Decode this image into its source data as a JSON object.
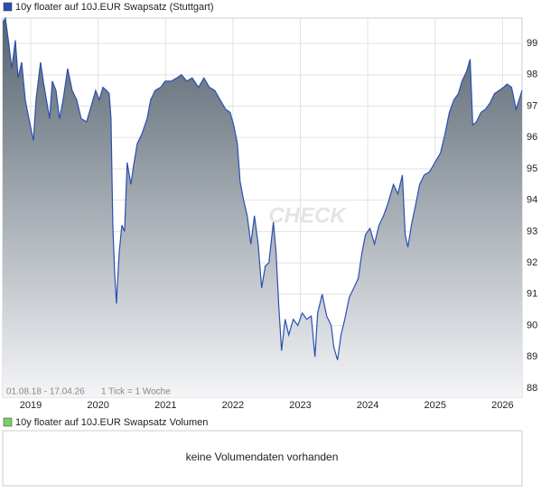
{
  "chart_data": {
    "type": "area",
    "title": "10y floater auf 10J.EUR Swapsatz (Stuttgart)",
    "range_label": "01.08.18 - 17.04.26",
    "tick_label": "1 Tick = 1 Woche",
    "watermark": "CHECK",
    "volume_title": "10y floater auf 10J.EUR Swapsatz Volumen",
    "volume_note": "keine Volumendaten vorhanden",
    "color": "#2a4fb0",
    "fill_top": "#56636f",
    "fill_bottom": "#f4f5f7",
    "title_marker_color": "#2a4fb0",
    "volume_marker_color": "#7ccf6a",
    "grid": true,
    "x": [
      2018.585,
      2018.625,
      2018.679,
      2018.719,
      2018.772,
      2018.813,
      2018.866,
      2018.92,
      2018.973,
      2019.04,
      2019.08,
      2019.147,
      2019.187,
      2019.241,
      2019.281,
      2019.321,
      2019.375,
      2019.428,
      2019.482,
      2019.549,
      2019.616,
      2019.683,
      2019.75,
      2019.83,
      2019.884,
      2019.964,
      2020.017,
      2020.071,
      2020.124,
      2020.165,
      2020.191,
      2020.218,
      2020.245,
      2020.272,
      2020.312,
      2020.352,
      2020.392,
      2020.432,
      2020.486,
      2020.526,
      2020.58,
      2020.647,
      2020.727,
      2020.78,
      2020.847,
      2020.928,
      2020.995,
      2021.088,
      2021.169,
      2021.236,
      2021.316,
      2021.396,
      2021.49,
      2021.57,
      2021.651,
      2021.731,
      2021.811,
      2021.892,
      2021.959,
      2022.012,
      2022.066,
      2022.106,
      2022.159,
      2022.213,
      2022.266,
      2022.32,
      2022.374,
      2022.427,
      2022.481,
      2022.534,
      2022.601,
      2022.641,
      2022.681,
      2022.722,
      2022.775,
      2022.829,
      2022.896,
      2022.963,
      2023.029,
      2023.096,
      2023.163,
      2023.217,
      2023.257,
      2023.324,
      2023.391,
      2023.458,
      2023.498,
      2023.552,
      2023.605,
      2023.659,
      2023.726,
      2023.793,
      2023.859,
      2023.913,
      2023.967,
      2024.033,
      2024.1,
      2024.167,
      2024.234,
      2024.301,
      2024.382,
      2024.448,
      2024.515,
      2024.556,
      2024.596,
      2024.649,
      2024.716,
      2024.77,
      2024.837,
      2024.917,
      2024.997,
      2025.078,
      2025.145,
      2025.211,
      2025.278,
      2025.345,
      2025.399,
      2025.466,
      2025.519,
      2025.559,
      2025.613,
      2025.68,
      2025.747,
      2025.814,
      2025.881,
      2025.948,
      2026.015,
      2026.068,
      2026.135,
      2026.202,
      2026.29
    ],
    "values": [
      99.66,
      99.8,
      98.94,
      98.2,
      99.1,
      97.9,
      98.4,
      97.2,
      96.6,
      95.9,
      97.2,
      98.4,
      97.8,
      97.1,
      96.6,
      97.8,
      97.5,
      96.6,
      97.2,
      98.2,
      97.5,
      97.2,
      96.6,
      96.5,
      96.9,
      97.5,
      97.2,
      97.6,
      97.5,
      97.4,
      96.6,
      93.2,
      91.7,
      90.7,
      92.3,
      93.2,
      93.0,
      95.2,
      94.5,
      95.1,
      95.8,
      96.1,
      96.6,
      97.2,
      97.5,
      97.6,
      97.8,
      97.8,
      97.9,
      98.0,
      97.8,
      97.9,
      97.6,
      97.9,
      97.6,
      97.5,
      97.2,
      96.9,
      96.8,
      96.4,
      95.8,
      94.6,
      94.0,
      93.5,
      92.6,
      93.5,
      92.6,
      91.2,
      91.9,
      92.0,
      93.3,
      92.3,
      90.6,
      89.2,
      90.2,
      89.7,
      90.2,
      90.0,
      90.4,
      90.2,
      90.3,
      89.0,
      90.4,
      91.0,
      90.3,
      90.0,
      89.3,
      88.9,
      89.7,
      90.2,
      90.9,
      91.2,
      91.5,
      92.3,
      92.9,
      93.1,
      92.6,
      93.2,
      93.5,
      93.9,
      94.5,
      94.2,
      94.8,
      92.9,
      92.5,
      93.2,
      93.9,
      94.5,
      94.8,
      94.9,
      95.2,
      95.5,
      96.1,
      96.8,
      97.2,
      97.4,
      97.8,
      98.1,
      98.5,
      96.4,
      96.5,
      96.8,
      96.9,
      97.1,
      97.4,
      97.5,
      97.6,
      97.7,
      97.6,
      96.9,
      97.5
    ],
    "xlim": [
      2018.585,
      2026.29
    ],
    "xticks": [
      2019,
      2020,
      2021,
      2022,
      2023,
      2024,
      2025,
      2026
    ],
    "ylim": [
      87.71,
      99.81
    ],
    "yticks": [
      88,
      89,
      90,
      91,
      92,
      93,
      94,
      95,
      96,
      97,
      98,
      99
    ]
  }
}
